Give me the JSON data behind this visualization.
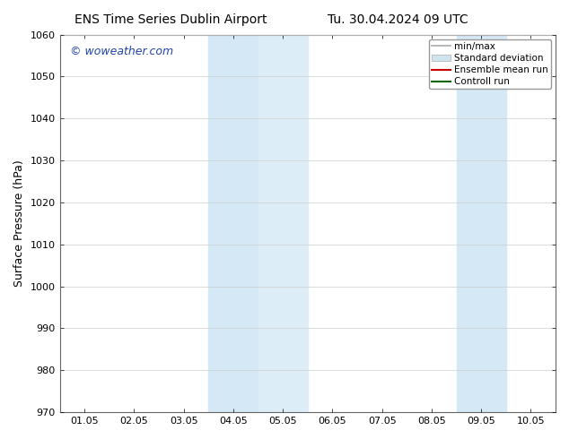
{
  "title_left": "ENS Time Series Dublin Airport",
  "title_right": "Tu. 30.04.2024 09 UTC",
  "ylabel": "Surface Pressure (hPa)",
  "ylim": [
    970,
    1060
  ],
  "yticks": [
    970,
    980,
    990,
    1000,
    1010,
    1020,
    1030,
    1040,
    1050,
    1060
  ],
  "xtick_labels": [
    "01.05",
    "02.05",
    "03.05",
    "04.05",
    "05.05",
    "06.05",
    "07.05",
    "08.05",
    "09.05",
    "10.05"
  ],
  "xlim": [
    0,
    9
  ],
  "shaded_bands": [
    {
      "x_start": 3.0,
      "x_end": 4.0,
      "color": "#d5e8f5"
    },
    {
      "x_start": 4.0,
      "x_end": 5.0,
      "color": "#ddedf8"
    },
    {
      "x_start": 8.0,
      "x_end": 9.0,
      "color": "#d5e8f5"
    }
  ],
  "legend_items": [
    {
      "label": "min/max",
      "color": "#aaaaaa",
      "linestyle": "-",
      "linewidth": 1.2,
      "type": "line"
    },
    {
      "label": "Standard deviation",
      "color": "#d0e4f0",
      "linestyle": "-",
      "linewidth": 8,
      "type": "patch"
    },
    {
      "label": "Ensemble mean run",
      "color": "#cc0000",
      "linestyle": "-",
      "linewidth": 1.5,
      "type": "line"
    },
    {
      "label": "Controll run",
      "color": "#006600",
      "linestyle": "-",
      "linewidth": 1.5,
      "type": "line"
    }
  ],
  "watermark": "© woweather.com",
  "watermark_color": "#2244aa",
  "background_color": "#ffffff",
  "grid_color": "#cccccc",
  "title_fontsize": 10,
  "tick_fontsize": 8,
  "ylabel_fontsize": 9,
  "legend_fontsize": 7.5
}
